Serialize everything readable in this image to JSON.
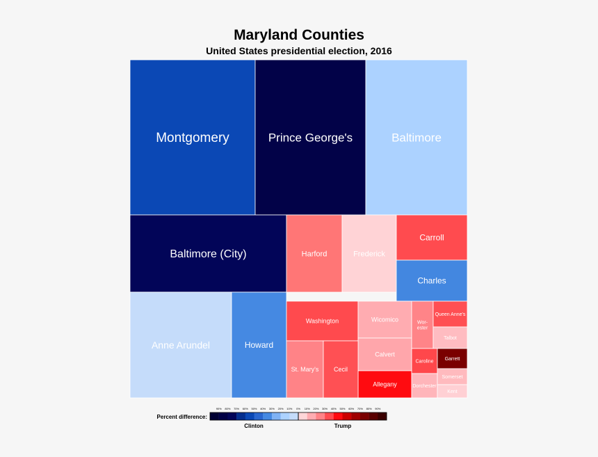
{
  "chart_data": {
    "type": "treemap",
    "title": "Maryland Counties",
    "subtitle": "United States presidential election, 2016",
    "cells": [
      {
        "name": "Montgomery",
        "winner": "Clinton",
        "margin": 55,
        "color": "#0b48b5"
      },
      {
        "name": "Prince George's",
        "winner": "Clinton",
        "margin": 80,
        "color": "#020248"
      },
      {
        "name": "Baltimore",
        "winner": "Clinton",
        "margin": 15,
        "color": "#acd2ff"
      },
      {
        "name": "Baltimore (City)",
        "winner": "Clinton",
        "margin": 75,
        "color": "#020558"
      },
      {
        "name": "Harford",
        "winner": "Trump",
        "margin": 25,
        "color": "#ff7676"
      },
      {
        "name": "Frederick",
        "winner": "Trump",
        "margin": 5,
        "color": "#ffd3d6"
      },
      {
        "name": "Carroll",
        "winner": "Trump",
        "margin": 35,
        "color": "#ff4b4f"
      },
      {
        "name": "Charles",
        "winner": "Clinton",
        "margin": 30,
        "color": "#4387e0"
      },
      {
        "name": "Anne Arundel",
        "winner": "Clinton",
        "margin": 5,
        "color": "#c5dcfa"
      },
      {
        "name": "Howard",
        "winner": "Clinton",
        "margin": 30,
        "color": "#4589e2"
      },
      {
        "name": "Washington",
        "winner": "Trump",
        "margin": 35,
        "color": "#ff4a4e"
      },
      {
        "name": "Wicomico",
        "winner": "Trump",
        "margin": 10,
        "color": "#ffacb1"
      },
      {
        "name": "Calvert",
        "winner": "Trump",
        "margin": 15,
        "color": "#ffa6ab"
      },
      {
        "name": "Allegany",
        "winner": "Trump",
        "margin": 45,
        "color": "#ff0b10"
      },
      {
        "name": "St. Mary's",
        "winner": "Trump",
        "margin": 25,
        "color": "#ff8387"
      },
      {
        "name": "Cecil",
        "winner": "Trump",
        "margin": 35,
        "color": "#ff5054"
      },
      {
        "name": "Wor-\nester",
        "winner": "Trump",
        "margin": 25,
        "color": "#ff8488"
      },
      {
        "name": "Queen Anne's",
        "winner": "Trump",
        "margin": 35,
        "color": "#ff4f53"
      },
      {
        "name": "Talbot",
        "winner": "Trump",
        "margin": 10,
        "color": "#ffbcc1"
      },
      {
        "name": "Caroline",
        "winner": "Trump",
        "margin": 40,
        "color": "#ff474b"
      },
      {
        "name": "Garrett",
        "winner": "Trump",
        "margin": 55,
        "color": "#7a0000"
      },
      {
        "name": "Dorchester",
        "winner": "Trump",
        "margin": 10,
        "color": "#ffb5ba"
      },
      {
        "name": "Somerset",
        "winner": "Trump",
        "margin": 10,
        "color": "#ffbabe"
      },
      {
        "name": "Kent",
        "winner": "Trump",
        "margin": 5,
        "color": "#ffd0d4"
      }
    ],
    "legend": {
      "label": "Percent difference:",
      "left_party": "Clinton",
      "right_party": "Trump",
      "clinton_ticks": [
        "90%",
        "80%",
        "70%",
        "60%",
        "50%",
        "40%",
        "30%",
        "20%",
        "10%"
      ],
      "trump_ticks": [
        "0%",
        "10%",
        "20%",
        "30%",
        "40%",
        "50%",
        "60%",
        "70%",
        "80%",
        "90%"
      ],
      "clinton_colors": [
        "#000033",
        "#000045",
        "#020558",
        "#042e8e",
        "#0b48b5",
        "#2a67cf",
        "#4589e2",
        "#7fb2f4",
        "#acd2ff",
        "#c5dcfa"
      ],
      "trump_colors": [
        "#ffd6d8",
        "#ffacb1",
        "#ff8387",
        "#ff4b4f",
        "#ff0b10",
        "#cc0000",
        "#a00000",
        "#7a0000",
        "#5a0000",
        "#3b0000"
      ]
    }
  }
}
